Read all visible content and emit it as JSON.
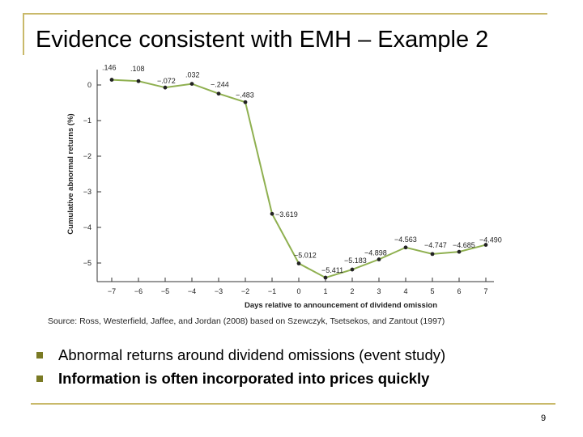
{
  "slide": {
    "title": "Evidence consistent with EMH – Example 2",
    "source": "Source: Ross, Westerfield, Jaffee, and Jordan (2008) based on Szewczyk, Tsetsekos, and Zantout (1997)",
    "bullets": [
      "Abnormal returns around dividend omissions (event study)",
      "Information is often incorporated into prices quickly"
    ],
    "page_number": "9"
  },
  "colors": {
    "line": "#8fb050",
    "marker": "#222222",
    "frame": "#c9b96a",
    "bullet": "#7a7a24"
  },
  "chart_data": {
    "type": "line",
    "xlabel": "Days relative to announcement of dividend omission",
    "ylabel": "Cumulative abnormal returns (%)",
    "xlim": [
      -7,
      7
    ],
    "ylim": [
      -5.5,
      0.3
    ],
    "x_ticks": [
      -7,
      -6,
      -5,
      -4,
      -3,
      -2,
      -1,
      0,
      1,
      2,
      3,
      4,
      5,
      6,
      7
    ],
    "x_tick_labels": [
      "−7",
      "−6",
      "−5",
      "−4",
      "−3",
      "−2",
      "−1",
      "0",
      "1",
      "2",
      "3",
      "4",
      "5",
      "6",
      "7"
    ],
    "y_ticks": [
      0,
      -1,
      -2,
      -3,
      -4,
      -5
    ],
    "y_tick_labels": [
      "0",
      "−1",
      "−2",
      "−3",
      "−4",
      "−5"
    ],
    "grid": false,
    "legend": "none",
    "series": [
      {
        "x": [
          -7,
          -6,
          -5,
          -4,
          -3,
          -2,
          -1,
          0,
          1,
          2,
          3,
          4,
          5,
          6,
          7
        ],
        "values": [
          0.146,
          0.108,
          -0.072,
          0.032,
          -0.244,
          -0.483,
          -3.619,
          -5.012,
          -5.411,
          -5.183,
          -4.898,
          -4.563,
          -4.747,
          -4.685,
          -4.49
        ],
        "labels": [
          ".146",
          ".108",
          "−.072",
          ".032",
          "−.244",
          "−.483",
          "−3.619",
          "−5.012",
          "−5.411",
          "−5.183",
          "−4.898",
          "−4.563",
          "−4.747",
          "−4.685",
          "−4.490"
        ]
      }
    ]
  }
}
